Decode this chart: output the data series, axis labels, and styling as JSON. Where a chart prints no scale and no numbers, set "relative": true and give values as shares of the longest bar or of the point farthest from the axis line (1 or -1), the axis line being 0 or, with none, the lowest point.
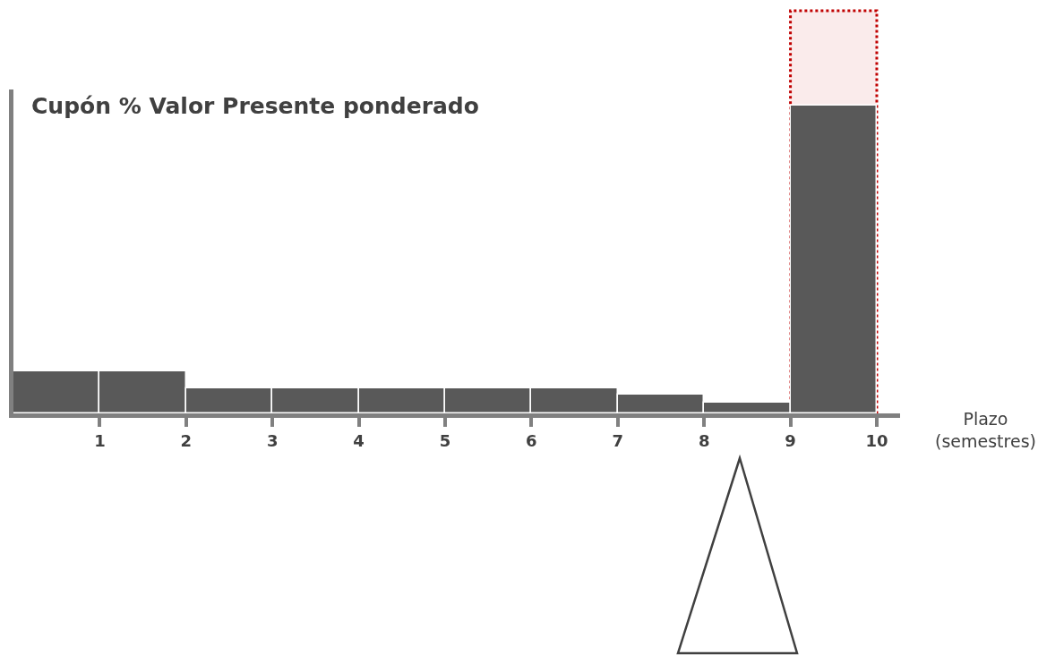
{
  "chart_data": {
    "type": "bar",
    "title": "Cupón % Valor Presente ponderado",
    "xlabel": "Plazo (semestres)",
    "x": [
      0.5,
      1.5,
      2.5,
      3.5,
      4.5,
      5.5,
      6.5,
      7.5,
      8.5,
      9.5
    ],
    "values": [
      0.137,
      0.137,
      0.081,
      0.081,
      0.081,
      0.081,
      0.081,
      0.061,
      0.035,
      1
    ],
    "color": "#595959",
    "relative": true,
    "xlim": [
      0,
      10.27
    ],
    "xticks": [
      1,
      2,
      3,
      4,
      5,
      6,
      7,
      8,
      9,
      10
    ],
    "bands": [
      {
        "axis": "x",
        "from": 9,
        "to": 10,
        "color": "#c00000"
      }
    ],
    "legend": false
  }
}
